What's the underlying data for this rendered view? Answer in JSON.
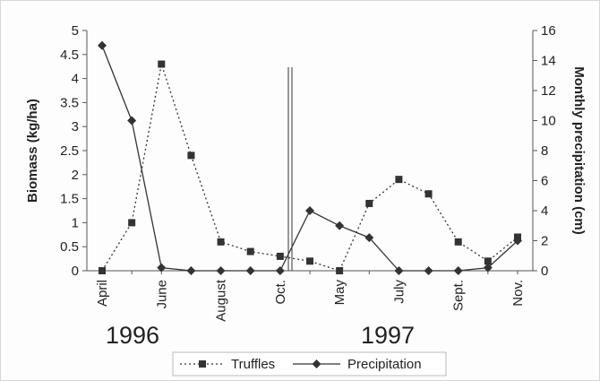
{
  "chart_data": {
    "type": "line",
    "ylabel_left": "Biomass (kg/ha)",
    "ylabel_right": "Monthly precipitation (cm)",
    "ylim_left": [
      0,
      5
    ],
    "ylim_right": [
      0,
      16
    ],
    "yticks_left": [
      "0",
      "0.5",
      "1",
      "1.5",
      "2",
      "2.5",
      "3",
      "3.5",
      "4",
      "4.5",
      "5"
    ],
    "yticks_right": [
      "0",
      "2",
      "4",
      "6",
      "8",
      "10",
      "12",
      "14",
      "16"
    ],
    "x_tick_labels": [
      "April",
      "June",
      "August",
      "Oct.",
      "May",
      "July",
      "Sept.",
      "Nov."
    ],
    "year_labels": [
      "1996",
      "1997"
    ],
    "series": [
      {
        "name": "Truffles",
        "axis": "left",
        "marker": "square",
        "line_style": "dotted",
        "values": [
          0,
          1.0,
          4.3,
          2.4,
          0.6,
          0.4,
          0.3,
          0.2,
          0,
          1.4,
          1.9,
          1.6,
          0.6,
          0.2,
          0.7
        ]
      },
      {
        "name": "Precipitation",
        "axis": "right",
        "marker": "diamond",
        "line_style": "solid",
        "values": [
          15,
          10,
          0.2,
          0,
          0,
          0,
          0,
          4,
          3,
          2.2,
          0,
          0,
          0,
          0.2,
          2
        ]
      }
    ],
    "grid": false,
    "legend_position": "bottom",
    "colors": {
      "line": "#333333",
      "marker": "#333333",
      "axis": "#555555"
    }
  }
}
